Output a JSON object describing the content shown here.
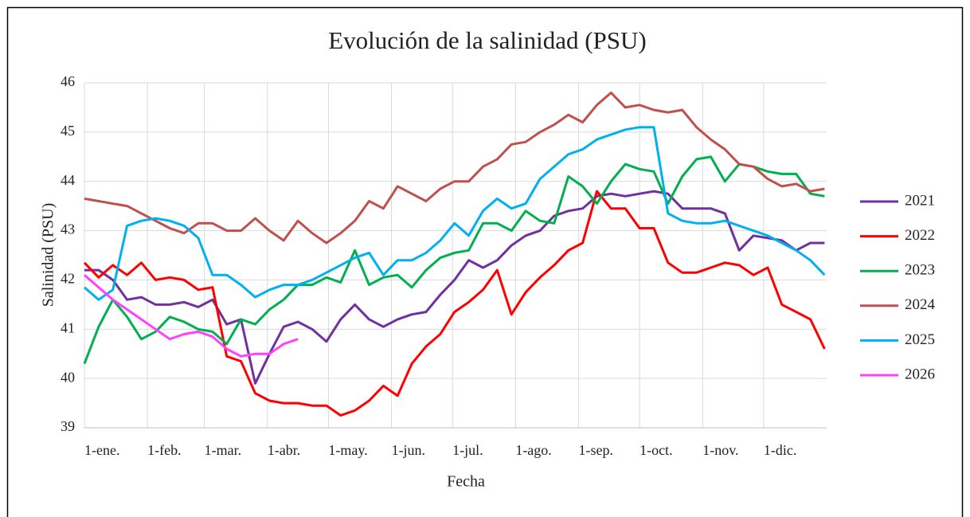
{
  "chart_data": {
    "type": "line",
    "title": "Evolución de la salinidad (PSU)",
    "x_label": "Fecha",
    "y_label": "Salinidad (PSU)",
    "x": [
      0,
      7,
      14,
      21,
      28,
      35,
      42,
      49,
      56,
      63,
      70,
      77,
      84,
      91,
      98,
      105,
      112,
      119,
      126,
      133,
      140,
      147,
      154,
      161,
      168,
      175,
      182,
      189,
      196,
      203,
      210,
      217,
      224,
      231,
      238,
      245,
      252,
      259,
      266,
      273,
      280,
      287,
      294,
      301,
      308,
      315,
      322,
      329,
      336,
      343,
      350,
      357,
      364
    ],
    "xlim": [
      0,
      365
    ],
    "xticks": [
      {
        "value": 0,
        "label": "1-ene."
      },
      {
        "value": 31,
        "label": "1-feb."
      },
      {
        "value": 59,
        "label": "1-mar."
      },
      {
        "value": 90,
        "label": "1-abr."
      },
      {
        "value": 120,
        "label": "1-may."
      },
      {
        "value": 151,
        "label": "1-jun."
      },
      {
        "value": 181,
        "label": "1-jul."
      },
      {
        "value": 212,
        "label": "1-ago."
      },
      {
        "value": 243,
        "label": "1-sep."
      },
      {
        "value": 273,
        "label": "1-oct."
      },
      {
        "value": 304,
        "label": "1-nov."
      },
      {
        "value": 334,
        "label": "1-dic."
      }
    ],
    "ylim": [
      39,
      46
    ],
    "yticks": [
      39,
      40,
      41,
      42,
      43,
      44,
      45,
      46
    ],
    "grid": true,
    "series": [
      {
        "name": "2021",
        "color": "#7030a0",
        "values": [
          42.2,
          42.2,
          42.0,
          41.6,
          41.65,
          41.5,
          41.5,
          41.55,
          41.45,
          41.6,
          41.1,
          41.2,
          39.9,
          40.5,
          41.05,
          41.15,
          41.0,
          40.75,
          41.2,
          41.5,
          41.2,
          41.05,
          41.2,
          41.3,
          41.35,
          41.7,
          42.0,
          42.4,
          42.25,
          42.4,
          42.7,
          42.9,
          43.0,
          43.3,
          43.4,
          43.45,
          43.7,
          43.75,
          43.7,
          43.75,
          43.8,
          43.75,
          43.45,
          43.45,
          43.45,
          43.35,
          42.6,
          42.9,
          42.85,
          42.8,
          42.6,
          42.75,
          42.75
        ]
      },
      {
        "name": "2022",
        "color": "#ff0000",
        "values": [
          42.35,
          42.05,
          42.3,
          42.1,
          42.35,
          42.0,
          42.05,
          42.0,
          41.8,
          41.85,
          40.45,
          40.35,
          39.7,
          39.55,
          39.5,
          39.5,
          39.45,
          39.45,
          39.25,
          39.35,
          39.55,
          39.85,
          39.65,
          40.3,
          40.65,
          40.9,
          41.35,
          41.55,
          41.8,
          42.2,
          41.3,
          41.75,
          42.05,
          42.3,
          42.6,
          42.75,
          43.8,
          43.45,
          43.45,
          43.05,
          43.05,
          42.35,
          42.15,
          42.15,
          42.25,
          42.35,
          42.3,
          42.1,
          42.25,
          41.5,
          41.35,
          41.2,
          40.6
        ]
      },
      {
        "name": "2023",
        "color": "#00b050",
        "values": [
          40.3,
          41.05,
          41.6,
          41.25,
          40.8,
          40.95,
          41.25,
          41.15,
          41.0,
          40.95,
          40.7,
          41.2,
          41.1,
          41.4,
          41.6,
          41.9,
          41.9,
          42.05,
          41.95,
          42.6,
          41.9,
          42.05,
          42.1,
          41.85,
          42.2,
          42.45,
          42.55,
          42.6,
          43.15,
          43.15,
          43.0,
          43.4,
          43.2,
          43.15,
          44.1,
          43.9,
          43.55,
          44.0,
          44.35,
          44.25,
          44.2,
          43.55,
          44.1,
          44.45,
          44.5,
          44.0,
          44.35,
          44.3,
          44.2,
          44.15,
          44.15,
          43.75,
          43.7
        ]
      },
      {
        "name": "2024",
        "color": "#c0504d",
        "values": [
          43.65,
          43.6,
          43.55,
          43.5,
          43.35,
          43.2,
          43.05,
          42.95,
          43.15,
          43.15,
          43.0,
          43.0,
          43.25,
          43.0,
          42.8,
          43.2,
          42.95,
          42.75,
          42.95,
          43.2,
          43.6,
          43.45,
          43.9,
          43.75,
          43.6,
          43.85,
          44.0,
          44.0,
          44.3,
          44.45,
          44.75,
          44.8,
          45.0,
          45.15,
          45.35,
          45.2,
          45.55,
          45.8,
          45.5,
          45.55,
          45.45,
          45.4,
          45.45,
          45.1,
          44.85,
          44.65,
          44.35,
          44.3,
          44.05,
          43.9,
          43.95,
          43.8,
          43.85
        ]
      },
      {
        "name": "2025",
        "color": "#00b0f0",
        "values": [
          41.85,
          41.6,
          41.8,
          43.1,
          43.2,
          43.25,
          43.2,
          43.1,
          42.85,
          42.1,
          42.1,
          41.9,
          41.65,
          41.8,
          41.9,
          41.9,
          42.0,
          42.15,
          42.3,
          42.45,
          42.55,
          42.1,
          42.4,
          42.4,
          42.55,
          42.8,
          43.15,
          42.9,
          43.4,
          43.65,
          43.45,
          43.55,
          44.05,
          44.3,
          44.55,
          44.65,
          44.85,
          44.95,
          45.05,
          45.1,
          45.1,
          43.35,
          43.2,
          43.15,
          43.15,
          43.2,
          43.1,
          43.0,
          42.9,
          42.75,
          42.6,
          42.4,
          42.1
        ]
      },
      {
        "name": "2026",
        "color": "#ff40ff",
        "values": [
          42.1,
          41.85,
          41.6,
          41.4,
          41.2,
          41.0,
          40.8,
          40.9,
          40.95,
          40.85,
          40.6,
          40.45,
          40.5,
          40.5,
          40.7,
          40.8,
          null,
          null,
          null,
          null,
          null,
          null,
          null,
          null,
          null,
          null,
          null,
          null,
          null,
          null,
          null,
          null,
          null,
          null,
          null,
          null,
          null,
          null,
          null,
          null,
          null,
          null,
          null,
          null,
          null,
          null,
          null,
          null,
          null,
          null,
          null,
          null,
          null
        ]
      }
    ]
  }
}
